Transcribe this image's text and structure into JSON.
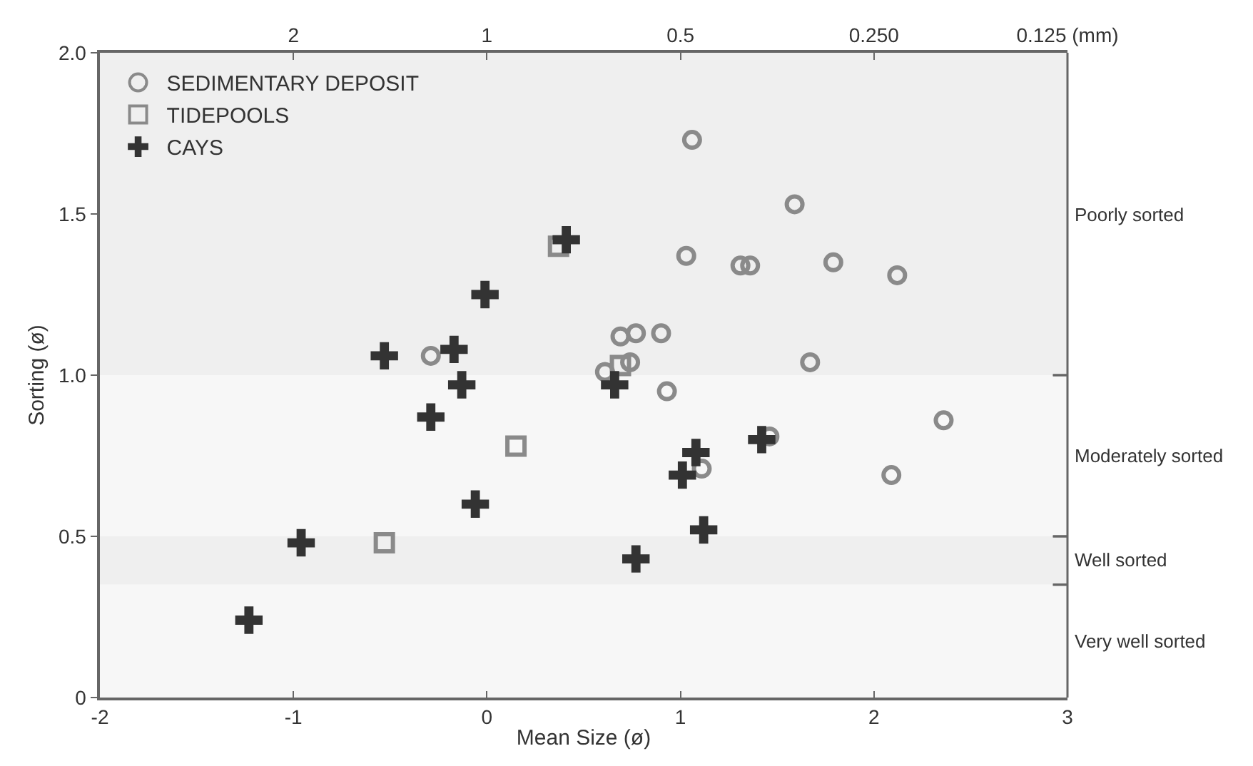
{
  "chart_data": {
    "type": "scatter",
    "xlabel": "Mean Size (ø)",
    "ylabel": "Sorting (ø)",
    "xlim": [
      -2,
      3
    ],
    "xticks": [
      -2,
      -1,
      0,
      1,
      2,
      3
    ],
    "ylim": [
      0,
      2
    ],
    "yticks": [
      0,
      {
        "value": 0.5,
        "label": "0.5"
      },
      {
        "value": 1,
        "label": "1.0"
      },
      {
        "value": 1.5,
        "label": "1.5"
      },
      {
        "value": 2,
        "label": "2.0"
      }
    ],
    "x2lim": [
      4,
      0.125
    ],
    "x2ticks": [
      2,
      1,
      0.5,
      {
        "value": 0.25,
        "label": "0.250"
      },
      {
        "value": 0.125,
        "label": "0.125 (mm)"
      }
    ],
    "log": "x2",
    "bands": [
      {
        "axis": "y",
        "from": 1,
        "to": 2,
        "label": "Poorly sorted"
      },
      {
        "axis": "y",
        "from": 0.5,
        "to": 1,
        "label": "Moderately sorted"
      },
      {
        "axis": "y",
        "from": 0.35,
        "to": 0.5,
        "label": "Well sorted"
      },
      {
        "axis": "y",
        "from": 0,
        "to": 0.35,
        "label": "Very well sorted"
      }
    ],
    "legend": "top left",
    "grid": false,
    "series": [
      {
        "name": "SEDIMENTARY DEPOSIT",
        "color": "#8a8a8a",
        "marker": "circle",
        "x": [
          1.06,
          1.59,
          1.03,
          1.31,
          1.36,
          1.79,
          2.12,
          0.69,
          0.77,
          0.9,
          -0.29,
          0.61,
          0.74,
          0.93,
          1.67,
          2.36,
          1.46,
          1.11,
          2.09
        ],
        "values": [
          1.73,
          1.53,
          1.37,
          1.34,
          1.34,
          1.35,
          1.31,
          1.12,
          1.13,
          1.13,
          1.06,
          1.01,
          1.04,
          0.95,
          1.04,
          0.86,
          0.81,
          0.71,
          0.69
        ]
      },
      {
        "name": "TIDEPOOLS",
        "color": "#8a8a8a",
        "marker": "square",
        "x": [
          0.37,
          0.15,
          -0.53,
          0.69
        ],
        "values": [
          1.4,
          0.78,
          0.48,
          1.03
        ]
      },
      {
        "name": "CAYS",
        "color": "#333333",
        "marker": "cross",
        "x": [
          0.41,
          -0.01,
          -0.53,
          -0.17,
          -0.13,
          -0.29,
          -0.06,
          -0.96,
          -1.23,
          0.66,
          1.08,
          1.01,
          1.42,
          1.12,
          0.77
        ],
        "values": [
          1.42,
          1.25,
          1.06,
          1.08,
          0.97,
          0.87,
          0.6,
          0.48,
          0.24,
          0.97,
          0.76,
          0.69,
          0.8,
          0.52,
          0.43
        ]
      }
    ]
  }
}
